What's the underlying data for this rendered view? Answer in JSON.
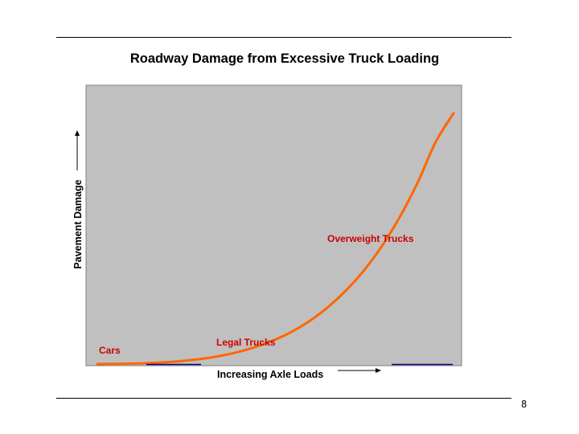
{
  "slide": {
    "page_number": "8"
  },
  "colors": {
    "plot_background": "#c0c0c0",
    "plot_border": "#808080",
    "curve": "#ff6600",
    "label_text": "#cc0000",
    "baseline_accent": "#000080",
    "text": "#000000"
  },
  "chart_data": {
    "type": "line",
    "title": "Roadway Damage from Excessive Truck Loading",
    "xlabel": "Increasing Axle Loads",
    "ylabel": "Pavement Damage",
    "xlim": [
      0,
      100
    ],
    "ylim": [
      0,
      100
    ],
    "grid": false,
    "axis_ticks": false,
    "series": [
      {
        "x": [
          0,
          5,
          10,
          15,
          20,
          25,
          30,
          35,
          40,
          45,
          50,
          55,
          60,
          65,
          70,
          75,
          80,
          85,
          90,
          95,
          100
        ],
        "y": [
          0,
          0.1,
          0.2,
          0.4,
          0.8,
          1.4,
          2.2,
          3.4,
          5.0,
          7.1,
          9.8,
          13.2,
          17.6,
          23.0,
          29.6,
          37.6,
          47.3,
          58.9,
          72.6,
          88.6,
          100
        ]
      }
    ],
    "annotations": [
      {
        "text": "Cars"
      },
      {
        "text": "Legal Trucks"
      },
      {
        "text": "Overweight Trucks"
      }
    ]
  }
}
